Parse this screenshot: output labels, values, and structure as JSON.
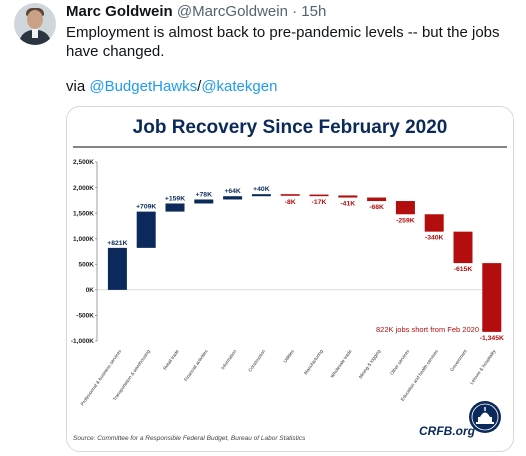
{
  "tweet": {
    "author_name": "Marc Goldwein",
    "handle": "@MarcGoldwein",
    "separator": "·",
    "time": "15h",
    "text": "Employment is almost back to pre-pandemic levels -- but the jobs have changed.",
    "via_prefix": "via",
    "via_link_1": "@BudgetHawks",
    "via_sep": "/",
    "via_link_2": "@katekgen",
    "colors": {
      "link": "#1d9bf0",
      "text": "#0f1419",
      "muted": "#536471"
    }
  },
  "chart_data": {
    "type": "bar",
    "subtype": "waterfall",
    "title": "Job Recovery Since February 2020",
    "ylim": [
      -1000,
      2500
    ],
    "yticks": [
      2500,
      2000,
      1500,
      1000,
      500,
      0,
      -500,
      -1000
    ],
    "ytick_labels": [
      "2,500K",
      "2,000K",
      "1,500K",
      "1,000K",
      "500K",
      "0K",
      "-500K",
      "-1,000K"
    ],
    "grid": false,
    "categories": [
      "Professional & business services",
      "Transportation & warehousing",
      "Retail trade",
      "Financial activities",
      "Information",
      "Construction",
      "Utilities",
      "Manufacturing",
      "Wholesale trade",
      "Mining & logging",
      "Other services",
      "Education and health services",
      "Government",
      "Leisure & hospitality"
    ],
    "values": [
      821,
      709,
      159,
      78,
      64,
      40,
      -8,
      -17,
      -41,
      -68,
      -259,
      -340,
      -615,
      -1345
    ],
    "value_labels": [
      "+821K",
      "+709K",
      "+159K",
      "+78K",
      "+64K",
      "+40K",
      "-8K",
      "-17K",
      "-41K",
      "-68K",
      "-259K",
      "-340K",
      "-615K",
      "-1,345K"
    ],
    "colors": {
      "positive": "#0b2a5b",
      "negative": "#b40d0d",
      "title": "#0b2a5b",
      "title_rule": "#5a5a5a"
    },
    "annotation": "822K jobs short from Feb 2020",
    "source": "Source: Committee for a Responsible Federal Budget, Bureau of Labor Statistics",
    "brand": "CRFB.org"
  }
}
